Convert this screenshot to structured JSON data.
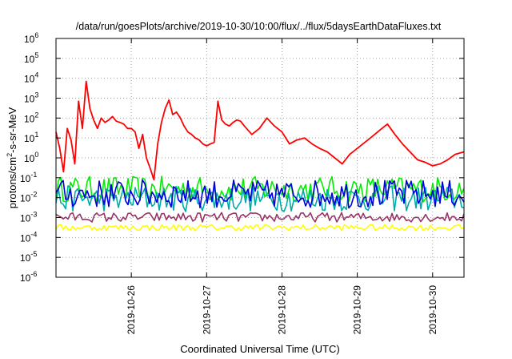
{
  "chart_data": {
    "type": "line",
    "title": "/data/run/goesPlots/archive/2019-10-30/10:00/flux/../flux/5daysEarthDataFluxes.txt",
    "xlabel": "Coordinated Universal Time (UTC)",
    "ylabel_base": "protons/cm",
    "ylabel_exp": "2",
    "ylabel_rest": "-s-sr-MeV",
    "y_scale": "log",
    "ylim": [
      1e-06,
      1000000
    ],
    "y_tick_exponents": [
      -6,
      -5,
      -4,
      -3,
      -2,
      -1,
      0,
      1,
      2,
      3,
      4,
      5,
      6
    ],
    "y_tick_base": "10",
    "x_range": [
      "2019-10-25T00:00",
      "2019-10-30T10:00"
    ],
    "x_ticks": [
      "2019-10-26",
      "2019-10-27",
      "2019-10-28",
      "2019-10-29",
      "2019-10-30"
    ],
    "grid": true,
    "series": [
      {
        "color": "#ff0000",
        "x": [
          "2019-10-25T00:00",
          "2019-10-25T01:12",
          "2019-10-25T02:24",
          "2019-10-25T03:36",
          "2019-10-25T04:48",
          "2019-10-25T06:00",
          "2019-10-25T07:12",
          "2019-10-25T08:24",
          "2019-10-25T09:36",
          "2019-10-25T10:48",
          "2019-10-25T12:00",
          "2019-10-25T13:12",
          "2019-10-25T14:24",
          "2019-10-25T15:36",
          "2019-10-25T16:48",
          "2019-10-25T18:00",
          "2019-10-25T19:12",
          "2019-10-25T20:24",
          "2019-10-25T21:36",
          "2019-10-25T22:48",
          "2019-10-26T00:00",
          "2019-10-26T01:12",
          "2019-10-26T02:24",
          "2019-10-26T03:36",
          "2019-10-26T04:48",
          "2019-10-26T06:00",
          "2019-10-26T07:12",
          "2019-10-26T08:24",
          "2019-10-26T09:36",
          "2019-10-26T10:48",
          "2019-10-26T12:00",
          "2019-10-26T13:12",
          "2019-10-26T14:24",
          "2019-10-26T15:36",
          "2019-10-26T16:48",
          "2019-10-26T18:00",
          "2019-10-26T19:12",
          "2019-10-26T20:24",
          "2019-10-26T21:36",
          "2019-10-26T22:48",
          "2019-10-27T00:00",
          "2019-10-27T01:12",
          "2019-10-27T02:24",
          "2019-10-27T03:36",
          "2019-10-27T04:48",
          "2019-10-27T06:00",
          "2019-10-27T07:12",
          "2019-10-27T08:24",
          "2019-10-27T09:36",
          "2019-10-27T10:48",
          "2019-10-27T12:00",
          "2019-10-27T14:24",
          "2019-10-27T16:48",
          "2019-10-27T19:12",
          "2019-10-27T21:36",
          "2019-10-28T00:00",
          "2019-10-28T02:24",
          "2019-10-28T04:48",
          "2019-10-28T07:12",
          "2019-10-28T09:36",
          "2019-10-28T12:00",
          "2019-10-28T14:24",
          "2019-10-28T16:48",
          "2019-10-28T19:12",
          "2019-10-28T21:36",
          "2019-10-29T00:00",
          "2019-10-29T02:24",
          "2019-10-29T04:48",
          "2019-10-29T07:12",
          "2019-10-29T09:36",
          "2019-10-29T12:00",
          "2019-10-29T14:24",
          "2019-10-29T16:48",
          "2019-10-29T19:12",
          "2019-10-29T21:36",
          "2019-10-30T00:00",
          "2019-10-30T02:24",
          "2019-10-30T04:48",
          "2019-10-30T07:12",
          "2019-10-30T10:00"
        ],
        "y": [
          20,
          3,
          0.2,
          30,
          8,
          0.5,
          700,
          30,
          7000,
          300,
          80,
          30,
          100,
          60,
          80,
          120,
          70,
          60,
          50,
          30,
          30,
          20,
          3,
          15,
          1,
          0.3,
          0.08,
          5,
          60,
          300,
          800,
          150,
          200,
          100,
          40,
          20,
          15,
          10,
          8,
          5,
          4,
          5,
          6,
          700,
          80,
          50,
          40,
          60,
          80,
          70,
          40,
          15,
          30,
          100,
          40,
          20,
          5,
          8,
          10,
          5,
          3,
          2,
          1,
          0.5,
          1.5,
          3,
          6,
          12,
          25,
          50,
          15,
          5,
          2,
          0.8,
          0.6,
          0.4,
          0.5,
          0.8,
          1.5,
          2
        ]
      },
      {
        "color": "#00ee00",
        "x": [
          "2019-10-25T00:00",
          "2019-10-30T10:00"
        ],
        "y": [
          0.05,
          0.05
        ],
        "band": [
          0.006,
          0.12
        ]
      },
      {
        "color": "#00aaaa",
        "x": [
          "2019-10-25T00:00",
          "2019-10-30T10:00"
        ],
        "y": [
          0.008,
          0.008
        ],
        "band": [
          0.002,
          0.04
        ]
      },
      {
        "color": "#0000dd",
        "x": [
          "2019-10-25T00:00",
          "2019-10-30T10:00"
        ],
        "y": [
          0.012,
          0.012
        ],
        "band": [
          0.003,
          0.08
        ]
      },
      {
        "color": "#993366",
        "x": [
          "2019-10-25T00:00",
          "2019-10-30T10:00"
        ],
        "y": [
          0.001,
          0.001
        ],
        "band": [
          0.0006,
          0.0018
        ]
      },
      {
        "color": "#ffff00",
        "x": [
          "2019-10-25T00:00",
          "2019-10-30T10:00"
        ],
        "y": [
          0.0003,
          0.0003
        ],
        "band": [
          0.00022,
          0.00045
        ]
      }
    ]
  }
}
